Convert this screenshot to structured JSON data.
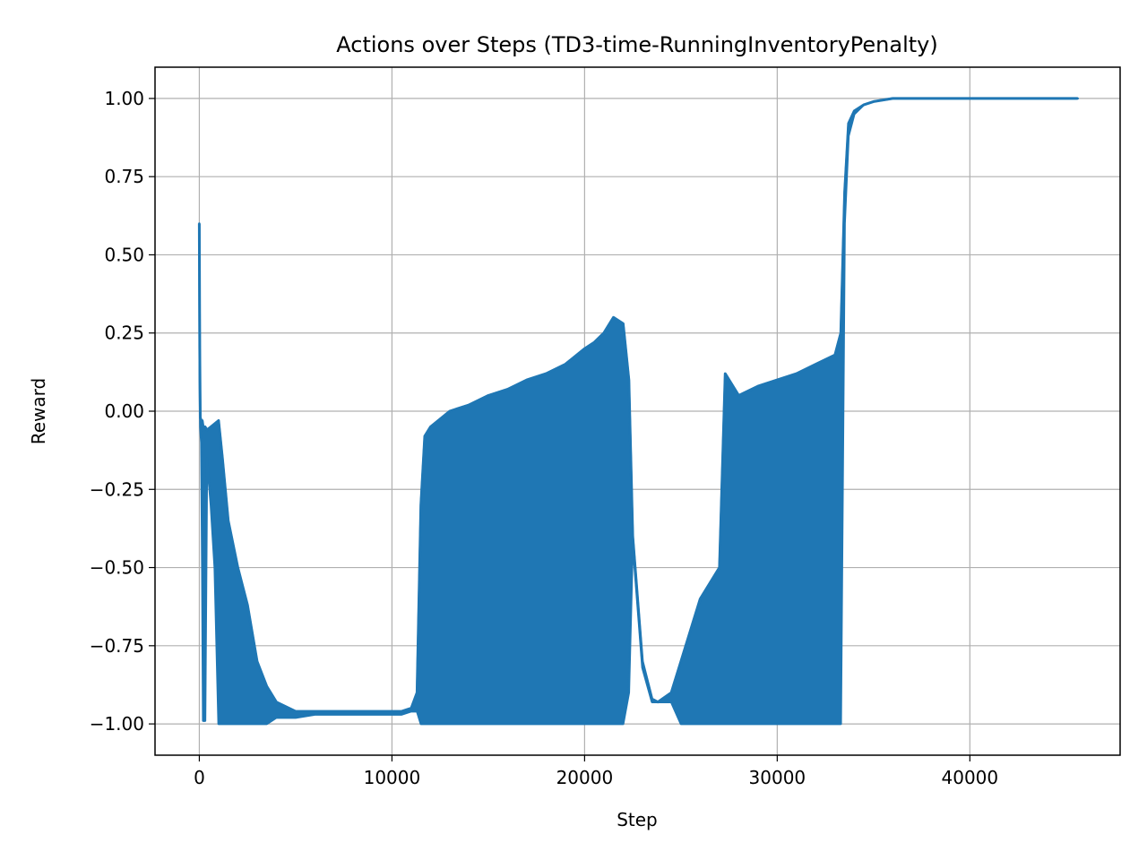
{
  "chart_data": {
    "type": "line",
    "title": "Actions over Steps (TD3-time-RunningInventoryPenalty)",
    "xlabel": "Step",
    "ylabel": "Reward",
    "xlim": [
      -2300,
      47800
    ],
    "ylim": [
      -1.1,
      1.1
    ],
    "x_ticks": [
      0,
      10000,
      20000,
      30000,
      40000
    ],
    "x_tick_labels": [
      "0",
      "10000",
      "20000",
      "30000",
      "40000"
    ],
    "y_ticks": [
      -1.0,
      -0.75,
      -0.5,
      -0.25,
      0.0,
      0.25,
      0.5,
      0.75,
      1.0
    ],
    "y_tick_labels": [
      "−1.00",
      "−0.75",
      "−0.50",
      "−0.25",
      "0.00",
      "0.25",
      "0.50",
      "0.75",
      "1.00"
    ],
    "grid": true,
    "line_color": "#1f77b4",
    "series": [
      {
        "x": [
          0,
          20,
          50,
          100,
          150,
          200,
          300,
          400,
          600,
          800,
          1000,
          1200,
          1500,
          2000,
          2500,
          3000,
          3500,
          4000,
          5000,
          6000,
          7000,
          8000,
          9000,
          10000,
          10500,
          11000,
          11300,
          11500,
          11700,
          12000,
          13000,
          14000,
          15000,
          16000,
          17000,
          18000,
          19000,
          20000,
          20500,
          21000,
          21500,
          22000,
          22300,
          22500,
          23000,
          23500,
          23800,
          24500,
          25000,
          26000,
          27000,
          27300,
          28000,
          29000,
          30000,
          31000,
          32000,
          33000,
          33300,
          33500,
          33700,
          34000,
          34500,
          35000,
          36000,
          37000,
          40000,
          44000,
          45600
        ],
        "y": [
          0.6,
          0.2,
          -0.02,
          -0.03,
          -0.03,
          -0.05,
          -0.05,
          -0.06,
          -0.05,
          -0.04,
          -0.03,
          -0.15,
          -0.35,
          -0.5,
          -0.62,
          -0.8,
          -0.88,
          -0.93,
          -0.96,
          -0.96,
          -0.96,
          -0.96,
          -0.96,
          -0.96,
          -0.96,
          -0.95,
          -0.9,
          -0.3,
          -0.08,
          -0.05,
          0.0,
          0.02,
          0.05,
          0.07,
          0.1,
          0.12,
          0.15,
          0.2,
          0.22,
          0.25,
          0.3,
          0.28,
          0.1,
          -0.4,
          -0.8,
          -0.92,
          -0.93,
          -0.9,
          -0.8,
          -0.6,
          -0.5,
          0.12,
          0.05,
          0.08,
          0.1,
          0.12,
          0.15,
          0.18,
          0.25,
          0.7,
          0.92,
          0.96,
          0.98,
          0.99,
          1.0,
          1.0,
          1.0,
          1.0,
          1.0
        ],
        "lower": [
          0.55,
          0.1,
          -0.05,
          -0.1,
          -0.5,
          -0.99,
          -0.99,
          -0.15,
          -0.3,
          -0.5,
          -1.0,
          -1.0,
          -1.0,
          -1.0,
          -1.0,
          -1.0,
          -1.0,
          -0.98,
          -0.98,
          -0.97,
          -0.97,
          -0.97,
          -0.97,
          -0.97,
          -0.97,
          -0.96,
          -0.96,
          -1.0,
          -1.0,
          -1.0,
          -1.0,
          -1.0,
          -1.0,
          -1.0,
          -1.0,
          -1.0,
          -1.0,
          -1.0,
          -1.0,
          -1.0,
          -1.0,
          -1.0,
          -0.9,
          -0.42,
          -0.82,
          -0.93,
          -0.93,
          -0.93,
          -1.0,
          -1.0,
          -1.0,
          -1.0,
          -1.0,
          -1.0,
          -1.0,
          -1.0,
          -1.0,
          -1.0,
          -1.0,
          0.6,
          0.88,
          0.95,
          0.98,
          0.99,
          1.0,
          1.0,
          1.0,
          1.0,
          1.0
        ]
      }
    ]
  }
}
